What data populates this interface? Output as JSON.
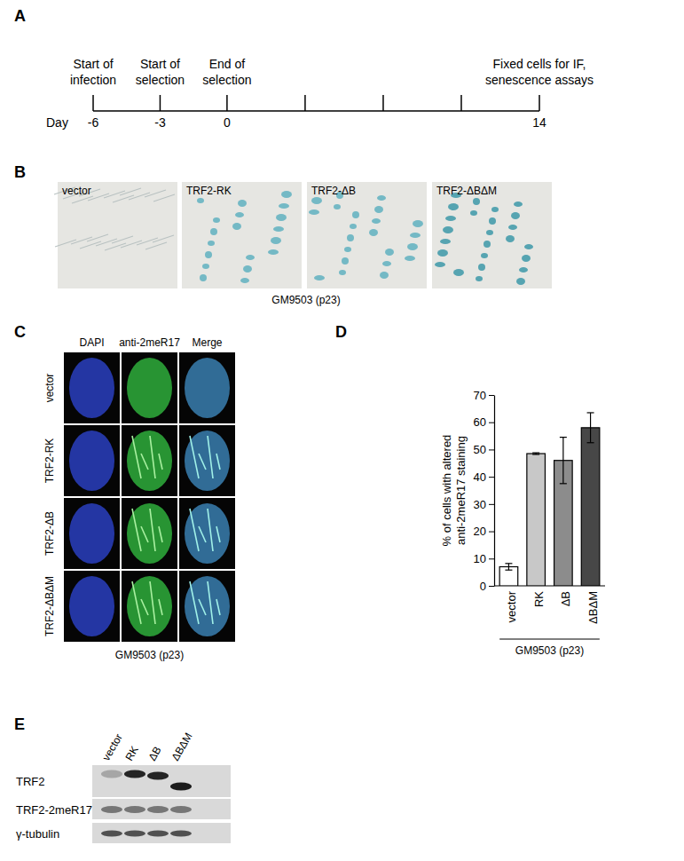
{
  "panels": {
    "A": {
      "label": "A",
      "day_label": "Day",
      "xlim": [
        -6,
        14
      ],
      "ticks": [
        -6,
        -3,
        0,
        14
      ],
      "minor_ticks": [
        3.5,
        7,
        10.5
      ],
      "events": [
        {
          "day": -6,
          "text": [
            "Start of",
            "infection"
          ]
        },
        {
          "day": -3,
          "text": [
            "Start of",
            "selection"
          ]
        },
        {
          "day": 0,
          "text": [
            "End of",
            "selection"
          ]
        },
        {
          "day": 14,
          "text": [
            "Fixed cells for IF,",
            "senescence assays"
          ]
        }
      ]
    },
    "B": {
      "label": "B",
      "images": [
        "vector",
        "TRF2-RK",
        "TRF2-ΔB",
        "TRF2-ΔBΔM"
      ],
      "caption": "GM9503 (p23)"
    },
    "C": {
      "label": "C",
      "columns": [
        "DAPI",
        "anti-2meR17",
        "Merge"
      ],
      "rows": [
        "vector",
        "TRF2-RK",
        "TRF2-ΔB",
        "TRF2-ΔBΔM"
      ],
      "caption": "GM9503 (p23)"
    },
    "E": {
      "label": "E",
      "lanes": [
        "vector",
        "RK",
        "ΔB",
        "ΔBΔM"
      ],
      "rows": [
        "TRF2",
        "TRF2-2meR17",
        "γ-tubulin"
      ]
    }
  },
  "chart_data": {
    "type": "bar",
    "panel_label": "D",
    "y_label": [
      "% of cells with altered",
      "anti-2meR17 staining"
    ],
    "categories": [
      "vector",
      "RK",
      "ΔB",
      "ΔBΔM"
    ],
    "values": [
      7,
      48.5,
      46,
      58
    ],
    "errors": [
      1.2,
      0.3,
      8.5,
      5.5
    ],
    "colors": [
      "#ffffff",
      "#c8c8c8",
      "#8c8c8c",
      "#474747"
    ],
    "ylim": [
      0,
      70
    ],
    "yticks": [
      0,
      10,
      20,
      30,
      40,
      50,
      60,
      70
    ],
    "group_label": "GM9503 (p23)"
  }
}
